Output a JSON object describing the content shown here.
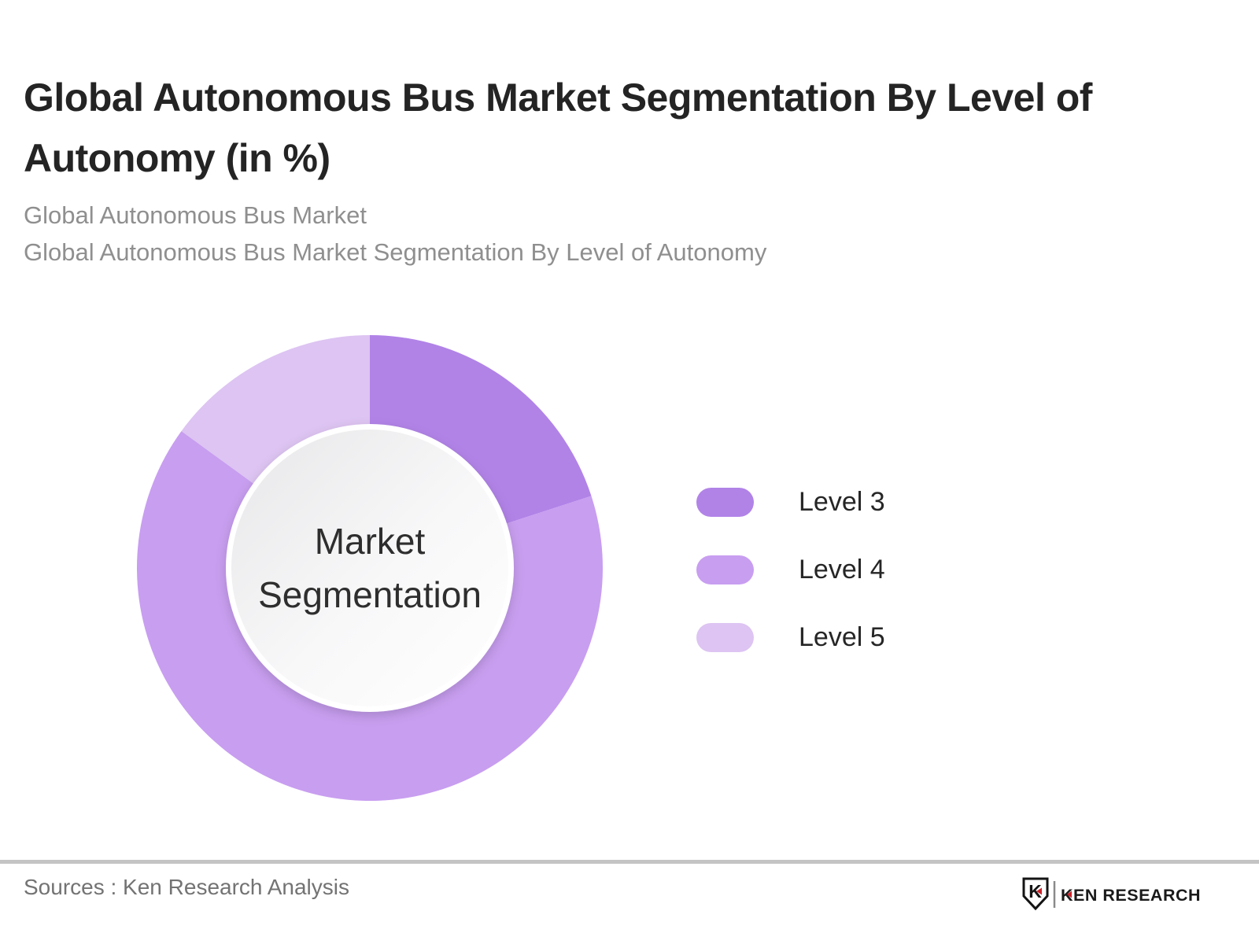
{
  "page": {
    "background_color": "#ffffff"
  },
  "header": {
    "title": "Global Autonomous Bus Market Segmentation By Level of\nAutonomy (in %)",
    "subtitles": [
      "Global Autonomous Bus Market",
      "Global Autonomous Bus Market Segmentation By Level of Autonomy"
    ]
  },
  "chart_data": {
    "type": "pie",
    "variant": "donut",
    "title": "Global Autonomous Bus Market Segmentation By Level of Autonomy (in %)",
    "categories": [
      "Level 3",
      "Level 4",
      "Level 5"
    ],
    "values": [
      20,
      65,
      15
    ],
    "unit": "%",
    "colors": [
      "#b183e7",
      "#c89ef0",
      "#ddc4f2"
    ],
    "start_angle_deg": 0,
    "direction": "clockwise",
    "center_label": "Market\nSegmentation",
    "legend_position": "right",
    "data_labels_shown": false
  },
  "footer": {
    "sources_text": "Sources : Ken Research Analysis",
    "divider_color": "#c4c4c4",
    "logo": {
      "icon": "ken-research-shield-k-icon",
      "brand_text": "KEN RESEARCH",
      "accent_color": "#cc2229",
      "text_color": "#1a1a1a"
    }
  }
}
